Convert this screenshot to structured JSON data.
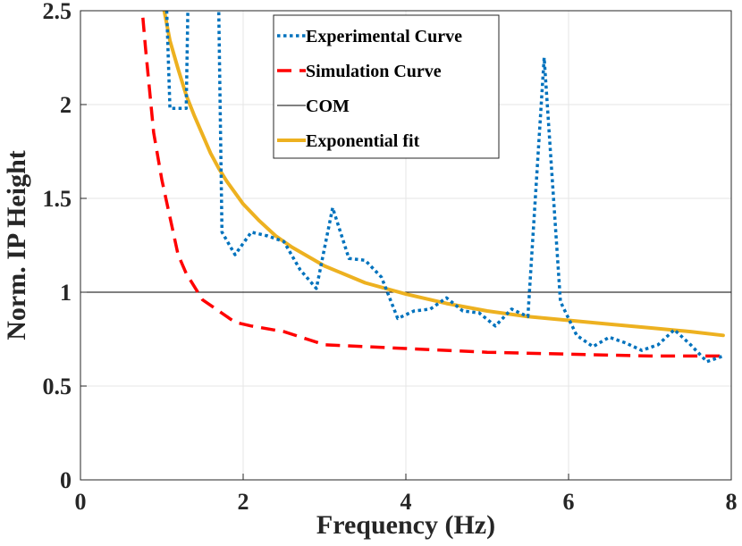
{
  "chart_data": {
    "type": "line",
    "title": "",
    "xlabel": "Frequency (Hz)",
    "ylabel": "Norm. IP Height",
    "xlim": [
      0,
      8
    ],
    "ylim": [
      0,
      2.5
    ],
    "grid": true,
    "legend_position": "top-center",
    "xticks": [
      "0",
      "2",
      "4",
      "6",
      "8"
    ],
    "yticks": [
      "0",
      "0.5",
      "1",
      "1.5",
      "2",
      "2.5"
    ],
    "series": [
      {
        "name": "Experimental Curve",
        "style": "dotted",
        "color": "#0072BD",
        "x": [
          1.02,
          1.06,
          1.1,
          1.3,
          1.32,
          1.36,
          1.4,
          1.66,
          1.7,
          1.74,
          1.9,
          2.1,
          2.3,
          2.5,
          2.7,
          2.9,
          3.1,
          3.3,
          3.5,
          3.7,
          3.9,
          4.1,
          4.3,
          4.5,
          4.7,
          4.9,
          5.1,
          5.3,
          5.5,
          5.7,
          5.9,
          6.1,
          6.3,
          6.5,
          6.7,
          6.9,
          7.1,
          7.3,
          7.5,
          7.7,
          7.9
        ],
        "y": [
          2.7,
          2.5,
          1.98,
          1.98,
          2.5,
          2.7,
          2.7,
          2.7,
          2.5,
          1.32,
          1.2,
          1.32,
          1.3,
          1.27,
          1.12,
          1.02,
          1.45,
          1.18,
          1.17,
          1.08,
          0.86,
          0.9,
          0.91,
          0.97,
          0.9,
          0.89,
          0.82,
          0.91,
          0.87,
          2.25,
          0.95,
          0.77,
          0.71,
          0.76,
          0.73,
          0.69,
          0.72,
          0.8,
          0.72,
          0.63,
          0.66
        ]
      },
      {
        "name": "Simulation Curve",
        "style": "dashed",
        "color": "#FF0000",
        "x": [
          0.72,
          0.8,
          0.9,
          1.0,
          1.1,
          1.2,
          1.3,
          1.5,
          1.7,
          1.9,
          2.1,
          2.5,
          3.0,
          3.5,
          4.0,
          5.0,
          6.0,
          7.0,
          7.9
        ],
        "y": [
          2.7,
          2.3,
          1.85,
          1.6,
          1.4,
          1.2,
          1.1,
          0.96,
          0.9,
          0.84,
          0.82,
          0.79,
          0.72,
          0.71,
          0.7,
          0.68,
          0.67,
          0.66,
          0.66
        ]
      },
      {
        "name": "COM",
        "style": "solid-thin",
        "color": "#000000",
        "x": [
          0,
          8
        ],
        "y": [
          1,
          1
        ]
      },
      {
        "name": "Exponential fit",
        "style": "solid-thick",
        "color": "#EDB120",
        "x": [
          1.03,
          1.1,
          1.2,
          1.3,
          1.4,
          1.5,
          1.6,
          1.7,
          1.8,
          2.0,
          2.2,
          2.4,
          2.6,
          2.8,
          3.0,
          3.5,
          4.0,
          4.5,
          5.0,
          5.5,
          6.0,
          6.5,
          7.0,
          7.5,
          7.9
        ],
        "y": [
          2.5,
          2.34,
          2.19,
          2.05,
          1.94,
          1.84,
          1.74,
          1.66,
          1.59,
          1.47,
          1.38,
          1.3,
          1.24,
          1.19,
          1.14,
          1.05,
          0.99,
          0.94,
          0.9,
          0.87,
          0.85,
          0.83,
          0.81,
          0.79,
          0.77
        ]
      }
    ]
  }
}
